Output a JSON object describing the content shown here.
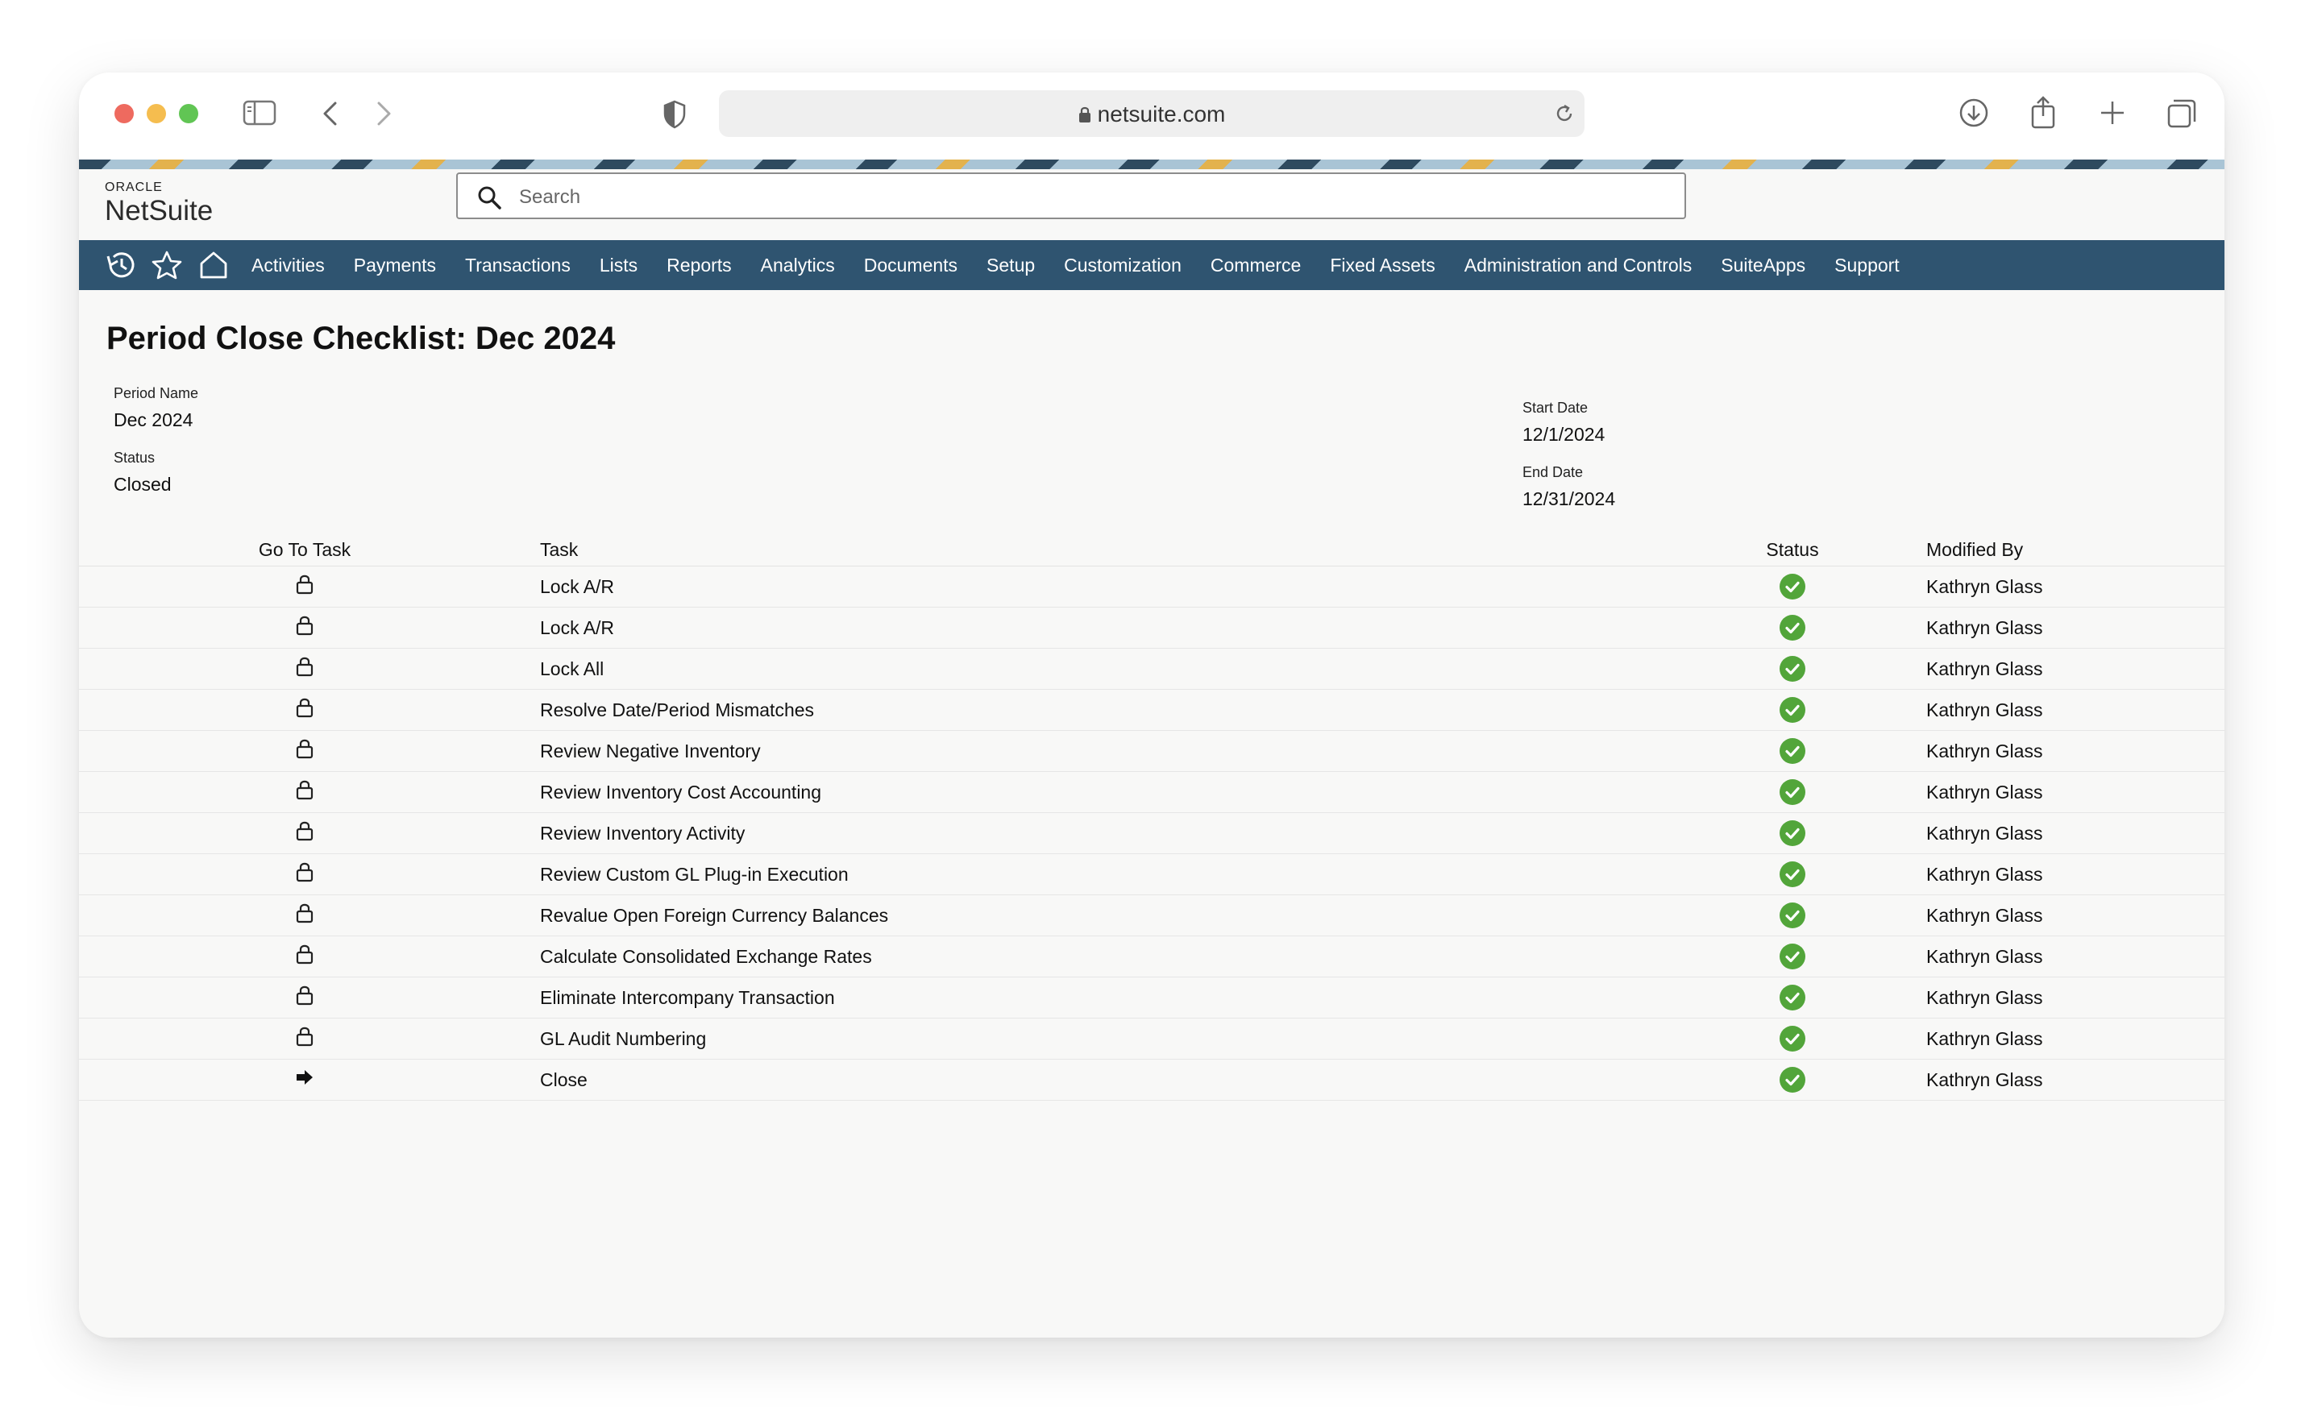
{
  "browser": {
    "url": "netsuite.com"
  },
  "brand": {
    "oracle": "ORACLE",
    "name": "NetSuite"
  },
  "search": {
    "placeholder": "Search"
  },
  "nav": {
    "items": [
      "Activities",
      "Payments",
      "Transactions",
      "Lists",
      "Reports",
      "Analytics",
      "Documents",
      "Setup",
      "Customization",
      "Commerce",
      "Fixed Assets",
      "Administration and Controls",
      "SuiteApps",
      "Support"
    ]
  },
  "page": {
    "title": "Period Close Checklist: Dec 2024"
  },
  "fields": {
    "period_name_label": "Period Name",
    "period_name_value": "Dec 2024",
    "status_label": "Status",
    "status_value": "Closed",
    "start_date_label": "Start Date",
    "start_date_value": "12/1/2024",
    "end_date_label": "End Date",
    "end_date_value": "12/31/2024"
  },
  "table": {
    "headers": {
      "go": "Go To Task",
      "task": "Task",
      "status": "Status",
      "modified_by": "Modified By"
    },
    "rows": [
      {
        "go_icon": "lock-icon",
        "task": "Lock A/R",
        "status": "complete",
        "modified_by": "Kathryn Glass"
      },
      {
        "go_icon": "lock-icon",
        "task": "Lock A/R",
        "status": "complete",
        "modified_by": "Kathryn Glass"
      },
      {
        "go_icon": "lock-icon",
        "task": "Lock All",
        "status": "complete",
        "modified_by": "Kathryn Glass"
      },
      {
        "go_icon": "lock-icon",
        "task": "Resolve Date/Period Mismatches",
        "status": "complete",
        "modified_by": "Kathryn Glass"
      },
      {
        "go_icon": "lock-icon",
        "task": "Review Negative Inventory",
        "status": "complete",
        "modified_by": "Kathryn Glass"
      },
      {
        "go_icon": "lock-icon",
        "task": "Review Inventory Cost Accounting",
        "status": "complete",
        "modified_by": "Kathryn Glass"
      },
      {
        "go_icon": "lock-icon",
        "task": "Review Inventory Activity",
        "status": "complete",
        "modified_by": "Kathryn Glass"
      },
      {
        "go_icon": "lock-icon",
        "task": "Review Custom GL Plug-in Execution",
        "status": "complete",
        "modified_by": "Kathryn Glass"
      },
      {
        "go_icon": "lock-icon",
        "task": "Revalue Open Foreign Currency Balances",
        "status": "complete",
        "modified_by": "Kathryn Glass"
      },
      {
        "go_icon": "lock-icon",
        "task": "Calculate Consolidated Exchange Rates",
        "status": "complete",
        "modified_by": "Kathryn Glass"
      },
      {
        "go_icon": "lock-icon",
        "task": "Eliminate Intercompany Transaction",
        "status": "complete",
        "modified_by": "Kathryn Glass"
      },
      {
        "go_icon": "lock-icon",
        "task": "GL Audit Numbering",
        "status": "complete",
        "modified_by": "Kathryn Glass"
      },
      {
        "go_icon": "arrow-right-icon",
        "task": "Close",
        "status": "complete",
        "modified_by": "Kathryn Glass"
      }
    ]
  },
  "colors": {
    "nav_bg": "#2f5470",
    "status_complete": "#52a53a"
  }
}
